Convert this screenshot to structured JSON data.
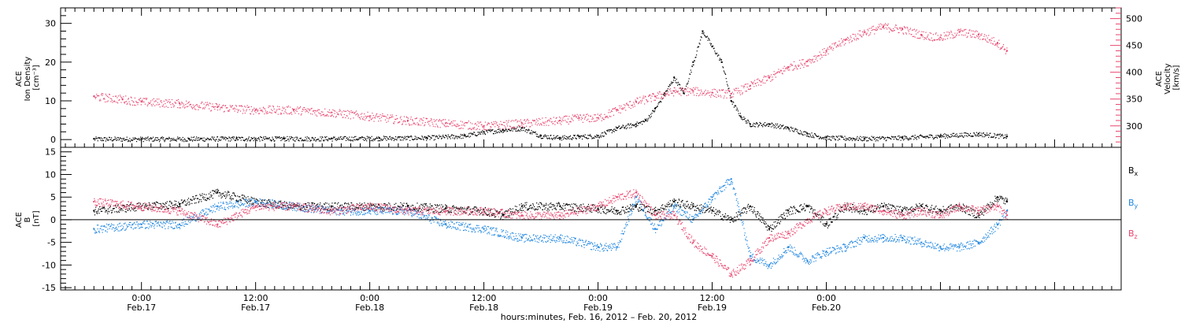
{
  "chart_data": [
    {
      "type": "scatter",
      "panel": "top",
      "left_axis": {
        "label_lines": [
          "ACE",
          "Ion Density",
          "[cm⁻³]"
        ],
        "ylim": [
          -2,
          34
        ],
        "ticks": [
          0,
          10,
          20,
          30
        ],
        "color": "#000000"
      },
      "right_axis": {
        "label_lines": [
          "ACE",
          "Velocity",
          "[km/s]"
        ],
        "ylim": [
          260,
          520
        ],
        "ticks": [
          300,
          350,
          400,
          450,
          500
        ],
        "color": "#e8456e"
      },
      "series": [
        {
          "key": "density",
          "axis": "left",
          "color": "#000000",
          "x": [
            -5,
            0,
            5,
            10,
            15,
            20,
            25,
            30,
            34,
            36,
            38,
            40,
            42,
            44,
            46,
            48,
            50,
            52,
            53,
            54,
            55,
            56,
            57,
            58,
            59,
            60,
            61,
            62,
            63,
            64,
            66,
            68,
            70,
            72,
            76,
            80,
            84,
            88,
            91
          ],
          "y": [
            0.2,
            0.2,
            0.2,
            0.3,
            0.3,
            0.3,
            0.4,
            0.5,
            1.0,
            2.0,
            2.5,
            3.0,
            1.0,
            0.5,
            0.8,
            1.0,
            3.0,
            4.0,
            5.0,
            8.0,
            12.0,
            16.0,
            12.0,
            20.0,
            28.0,
            24.0,
            20.0,
            10.0,
            6.0,
            4.0,
            4.0,
            3.0,
            1.5,
            0.5,
            0.3,
            0.5,
            1.0,
            1.5,
            0.8
          ]
        },
        {
          "key": "velocity",
          "axis": "right",
          "color": "#e8456e",
          "x": [
            -5,
            -2,
            0,
            4,
            8,
            12,
            16,
            20,
            24,
            28,
            32,
            36,
            40,
            44,
            46,
            48,
            50,
            52,
            54,
            56,
            58,
            60,
            62,
            64,
            66,
            68,
            70,
            72,
            74,
            76,
            78,
            80,
            82,
            84,
            86,
            88,
            90,
            91
          ],
          "y": [
            355,
            350,
            345,
            342,
            335,
            330,
            330,
            325,
            318,
            310,
            305,
            300,
            305,
            310,
            315,
            315,
            330,
            345,
            355,
            365,
            365,
            362,
            360,
            375,
            390,
            410,
            420,
            440,
            460,
            475,
            485,
            480,
            470,
            465,
            475,
            470,
            455,
            440
          ]
        }
      ]
    },
    {
      "type": "scatter",
      "panel": "bottom",
      "left_axis": {
        "label_lines": [
          "ACE",
          "B",
          "[nT]"
        ],
        "ylim": [
          -15.5,
          16
        ],
        "ticks": [
          -15,
          -10,
          -5,
          0,
          5,
          10,
          15
        ],
        "color": "#000000"
      },
      "zero_line": true,
      "series": [
        {
          "key": "bx",
          "name_main": "B",
          "name_sub": "x",
          "color": "#000000",
          "x": [
            -5,
            0,
            4,
            8,
            12,
            16,
            20,
            24,
            28,
            32,
            36,
            38,
            40,
            44,
            48,
            50,
            52,
            54,
            56,
            58,
            60,
            62,
            64,
            66,
            68,
            70,
            72,
            74,
            76,
            78,
            80,
            82,
            84,
            86,
            88,
            90,
            91
          ],
          "y": [
            2,
            3,
            3.5,
            6,
            4,
            3,
            3,
            3,
            3,
            2.5,
            2,
            1,
            3,
            3,
            2.5,
            2,
            3,
            2,
            4,
            3,
            2,
            0,
            3,
            -2,
            2,
            3,
            -1,
            3,
            2,
            3,
            2,
            3,
            2,
            3,
            1,
            5,
            4
          ]
        },
        {
          "key": "by",
          "name_main": "B",
          "name_sub": "y",
          "color": "#1f86e0",
          "x": [
            -5,
            0,
            4,
            8,
            12,
            16,
            20,
            24,
            28,
            32,
            36,
            40,
            44,
            48,
            50,
            52,
            54,
            56,
            58,
            60,
            62,
            64,
            66,
            68,
            70,
            72,
            74,
            76,
            78,
            80,
            82,
            84,
            86,
            88,
            90,
            91
          ],
          "y": [
            -2,
            -1,
            -1,
            3,
            4,
            3,
            2,
            2,
            2,
            -1,
            -2,
            -4,
            -4,
            -6,
            -6,
            5,
            -2,
            3,
            0,
            5,
            9,
            -8,
            -10,
            -6,
            -9,
            -7,
            -6,
            -4,
            -4,
            -4,
            -5,
            -6,
            -6,
            -5,
            -1,
            2
          ]
        },
        {
          "key": "bz",
          "name_main": "B",
          "name_sub": "z",
          "color": "#e8456e",
          "x": [
            -5,
            0,
            4,
            8,
            12,
            16,
            20,
            24,
            28,
            32,
            36,
            40,
            44,
            48,
            50,
            52,
            54,
            56,
            58,
            60,
            62,
            64,
            66,
            68,
            70,
            72,
            74,
            76,
            78,
            80,
            82,
            84,
            86,
            88,
            90,
            91
          ],
          "y": [
            4,
            3,
            2,
            -1,
            3,
            3,
            2,
            3,
            2,
            2,
            2,
            1,
            1,
            3,
            5,
            6,
            1,
            1,
            -5,
            -8,
            -12,
            -9,
            -4,
            -3,
            0,
            2,
            3,
            3,
            2,
            1,
            2,
            1,
            3,
            2,
            3,
            1
          ]
        }
      ]
    }
  ],
  "x_axis": {
    "range_hours": [
      -8.5,
      103
    ],
    "ticks": [
      {
        "hours": 0,
        "time": "0:00",
        "date": "Feb.17"
      },
      {
        "hours": 12,
        "time": "12:00",
        "date": "Feb.17"
      },
      {
        "hours": 24,
        "time": "0:00",
        "date": "Feb.18"
      },
      {
        "hours": 36,
        "time": "12:00",
        "date": "Feb.18"
      },
      {
        "hours": 48,
        "time": "0:00",
        "date": "Feb.19"
      },
      {
        "hours": 60,
        "time": "12:00",
        "date": "Feb.19"
      },
      {
        "hours": 72,
        "time": "0:00",
        "date": "Feb.20"
      }
    ],
    "label": "hours:minutes, Feb. 16, 2012 – Feb. 20, 2012"
  },
  "legend": {
    "placement": "right of lower panel"
  },
  "colors": {
    "black": "#000000",
    "blue": "#1f86e0",
    "pink": "#e8456e"
  }
}
